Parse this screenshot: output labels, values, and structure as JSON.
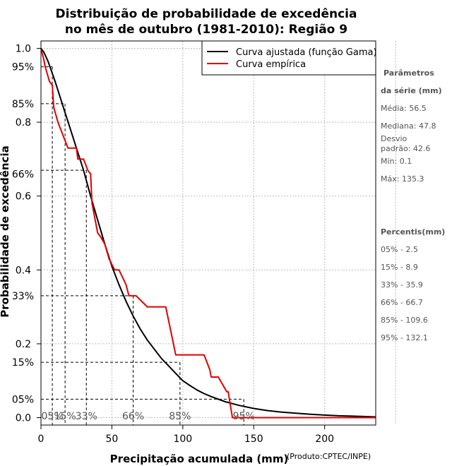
{
  "chart_data": {
    "type": "line",
    "title": "Distribuição de probabilidade de excedência",
    "subtitle": "no mês de outubro (1981-2010): Região 9",
    "xlabel": "Precipitação acumulada (mm)",
    "ylabel": "Probabilidade de excedência",
    "credit": "(Produto:CPTEC/INPE)",
    "xlim": [
      0,
      236
    ],
    "ylim": [
      -0.02,
      1.02
    ],
    "x_ticks": [
      0,
      50,
      100,
      150,
      200
    ],
    "x_tick_labels": [
      "0",
      "50",
      "100",
      "150",
      "200"
    ],
    "y_ticks": [
      0.0,
      0.2,
      0.4,
      0.6,
      0.8,
      1.0
    ],
    "y_tick_labels": [
      "0.0",
      "0.2",
      "0.4",
      "0.6",
      "0.8",
      "1.0"
    ],
    "grid": true,
    "legend": {
      "position": "top-right",
      "entries": [
        {
          "label": "Curva ajustada (função Gama)",
          "color": "#000000"
        },
        {
          "label": "Curva empírica",
          "color": "#e00000"
        }
      ]
    },
    "series": [
      {
        "name": "Curva ajustada (função Gama)",
        "color": "#000000",
        "x": [
          0,
          2,
          5,
          10,
          15,
          20,
          25,
          30,
          35,
          40,
          45,
          50,
          55,
          60,
          65,
          70,
          75,
          80,
          85,
          90,
          95,
          100,
          105,
          110,
          115,
          120,
          130,
          140,
          150,
          160,
          170,
          180,
          190,
          200,
          210,
          220,
          236
        ],
        "y": [
          1.0,
          0.99,
          0.965,
          0.91,
          0.85,
          0.79,
          0.73,
          0.67,
          0.6,
          0.535,
          0.47,
          0.41,
          0.36,
          0.315,
          0.275,
          0.24,
          0.21,
          0.185,
          0.16,
          0.14,
          0.12,
          0.1,
          0.087,
          0.075,
          0.065,
          0.057,
          0.043,
          0.033,
          0.025,
          0.019,
          0.015,
          0.012,
          0.009,
          0.007,
          0.005,
          0.004,
          0.002
        ]
      },
      {
        "name": "Curva empírica",
        "color": "#e00000",
        "x": [
          0,
          2,
          3,
          6,
          8,
          9,
          12,
          15,
          18,
          19,
          25,
          26,
          29,
          30,
          33,
          35,
          36,
          38,
          40,
          42,
          45,
          48,
          52,
          55,
          60,
          62,
          66,
          67,
          75,
          76,
          88,
          95,
          98,
          115,
          119,
          120,
          125,
          131,
          132,
          135,
          236
        ],
        "y": [
          1.0,
          0.97,
          0.95,
          0.91,
          0.9,
          0.84,
          0.8,
          0.77,
          0.74,
          0.73,
          0.73,
          0.7,
          0.7,
          0.7,
          0.67,
          0.66,
          0.58,
          0.54,
          0.5,
          0.49,
          0.47,
          0.43,
          0.4,
          0.4,
          0.36,
          0.33,
          0.33,
          0.33,
          0.3,
          0.3,
          0.3,
          0.17,
          0.17,
          0.17,
          0.13,
          0.11,
          0.11,
          0.07,
          0.07,
          0.0,
          0.0
        ]
      }
    ],
    "percentile_markers": [
      {
        "label": "05%",
        "prob": 0.95,
        "x": 8
      },
      {
        "label": "15%",
        "prob": 0.85,
        "x": 17
      },
      {
        "label": "33%",
        "prob": 0.67,
        "x": 32
      },
      {
        "label": "66%",
        "prob": 0.33,
        "x": 65
      },
      {
        "label": "85%",
        "prob": 0.15,
        "x": 98
      },
      {
        "label": "95%",
        "prob": 0.05,
        "x": 143
      }
    ],
    "y_percent_labels": [
      {
        "label": "95%",
        "prob": 0.95
      },
      {
        "label": "85%",
        "prob": 0.85
      },
      {
        "label": "66%",
        "prob": 0.66
      },
      {
        "label": "33%",
        "prob": 0.33
      },
      {
        "label": "15%",
        "prob": 0.15
      },
      {
        "label": "05%",
        "prob": 0.05
      }
    ]
  },
  "side_panel": {
    "params_heading_1": "Parâmetros",
    "params_heading_2": "da série (mm)",
    "media": "Média: 56.5",
    "mediana": "Mediana: 47.8",
    "desvio_1": "Desvio",
    "desvio_2": "padrão: 42.6",
    "min": "Mín: 0.1",
    "max": "Máx: 135.3",
    "percentis_heading": "Percentis(mm)",
    "percentis": [
      "05% - 2.5",
      "15% - 8.9",
      "33% - 35.9",
      "66% - 66.7",
      "85% - 109.6",
      "95% - 132.1"
    ]
  }
}
